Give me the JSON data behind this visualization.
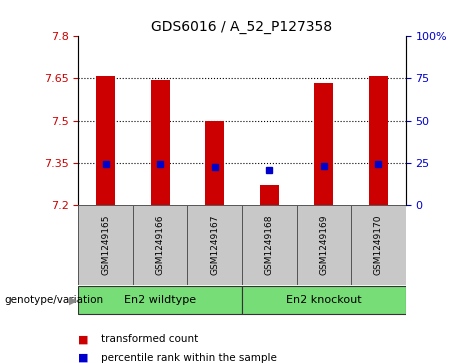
{
  "title": "GDS6016 / A_52_P127358",
  "samples": [
    "GSM1249165",
    "GSM1249166",
    "GSM1249167",
    "GSM1249168",
    "GSM1249169",
    "GSM1249170"
  ],
  "red_values": [
    7.66,
    7.645,
    7.5,
    7.27,
    7.635,
    7.66
  ],
  "blue_values": [
    7.345,
    7.345,
    7.335,
    7.325,
    7.34,
    7.345
  ],
  "y_min": 7.2,
  "y_max": 7.8,
  "y_ticks": [
    7.2,
    7.35,
    7.5,
    7.65,
    7.8
  ],
  "y_tick_labels": [
    "7.2",
    "7.35",
    "7.5",
    "7.65",
    "7.8"
  ],
  "y2_ticks": [
    0,
    25,
    50,
    75,
    100
  ],
  "y2_tick_labels": [
    "0",
    "25",
    "50",
    "75",
    "100%"
  ],
  "dotted_lines": [
    7.35,
    7.5,
    7.65
  ],
  "group1_label": "En2 wildtype",
  "group2_label": "En2 knockout",
  "group1_indices": [
    0,
    1,
    2
  ],
  "group2_indices": [
    3,
    4,
    5
  ],
  "group_color": "#77DD77",
  "bar_color_red": "#CC0000",
  "bar_color_blue": "#0000CC",
  "legend_red": "transformed count",
  "legend_blue": "percentile rank within the sample",
  "genotype_label": "genotype/variation",
  "tick_color_left": "#CC0000",
  "tick_color_right": "#0000CC",
  "bar_width": 0.35,
  "gray_bg": "#C8C8C8",
  "white_bg": "#FFFFFF"
}
